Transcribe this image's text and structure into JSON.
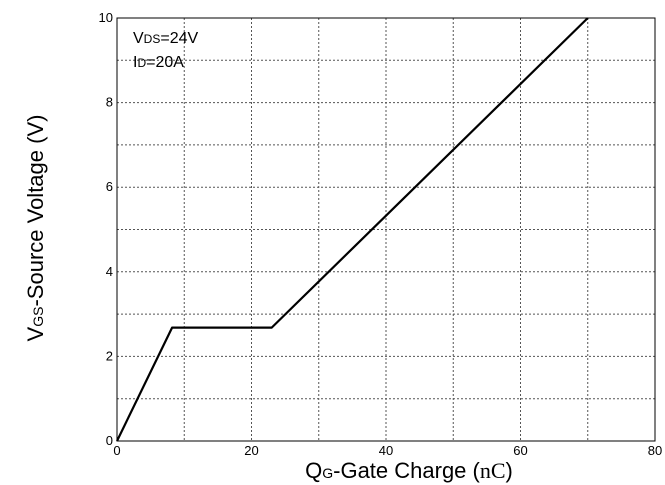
{
  "chart_data": {
    "type": "line",
    "title": "",
    "xlabel": {
      "main": "Q",
      "sub": "G",
      "rest": "-Gate Charge (",
      "unit": "nC",
      "close": ")"
    },
    "ylabel": {
      "main": "V",
      "sub": "GS",
      "rest": "-Source Voltage (V)"
    },
    "xlim": [
      0,
      80
    ],
    "ylim": [
      0,
      10
    ],
    "xticks": [
      0,
      20,
      40,
      60,
      80
    ],
    "yticks": [
      0,
      2,
      4,
      6,
      8,
      10
    ],
    "grid": true,
    "annotations": [
      {
        "main": "V",
        "sub": "DS",
        "rest": "=24V"
      },
      {
        "main": "I",
        "sub": "D",
        "rest": "=20A"
      }
    ],
    "series": [
      {
        "color": "#000000",
        "points": [
          {
            "x": 0,
            "y": 0
          },
          {
            "x": 8.2,
            "y": 2.68
          },
          {
            "x": 23,
            "y": 2.68
          },
          {
            "x": 70,
            "y": 10
          }
        ]
      }
    ]
  }
}
